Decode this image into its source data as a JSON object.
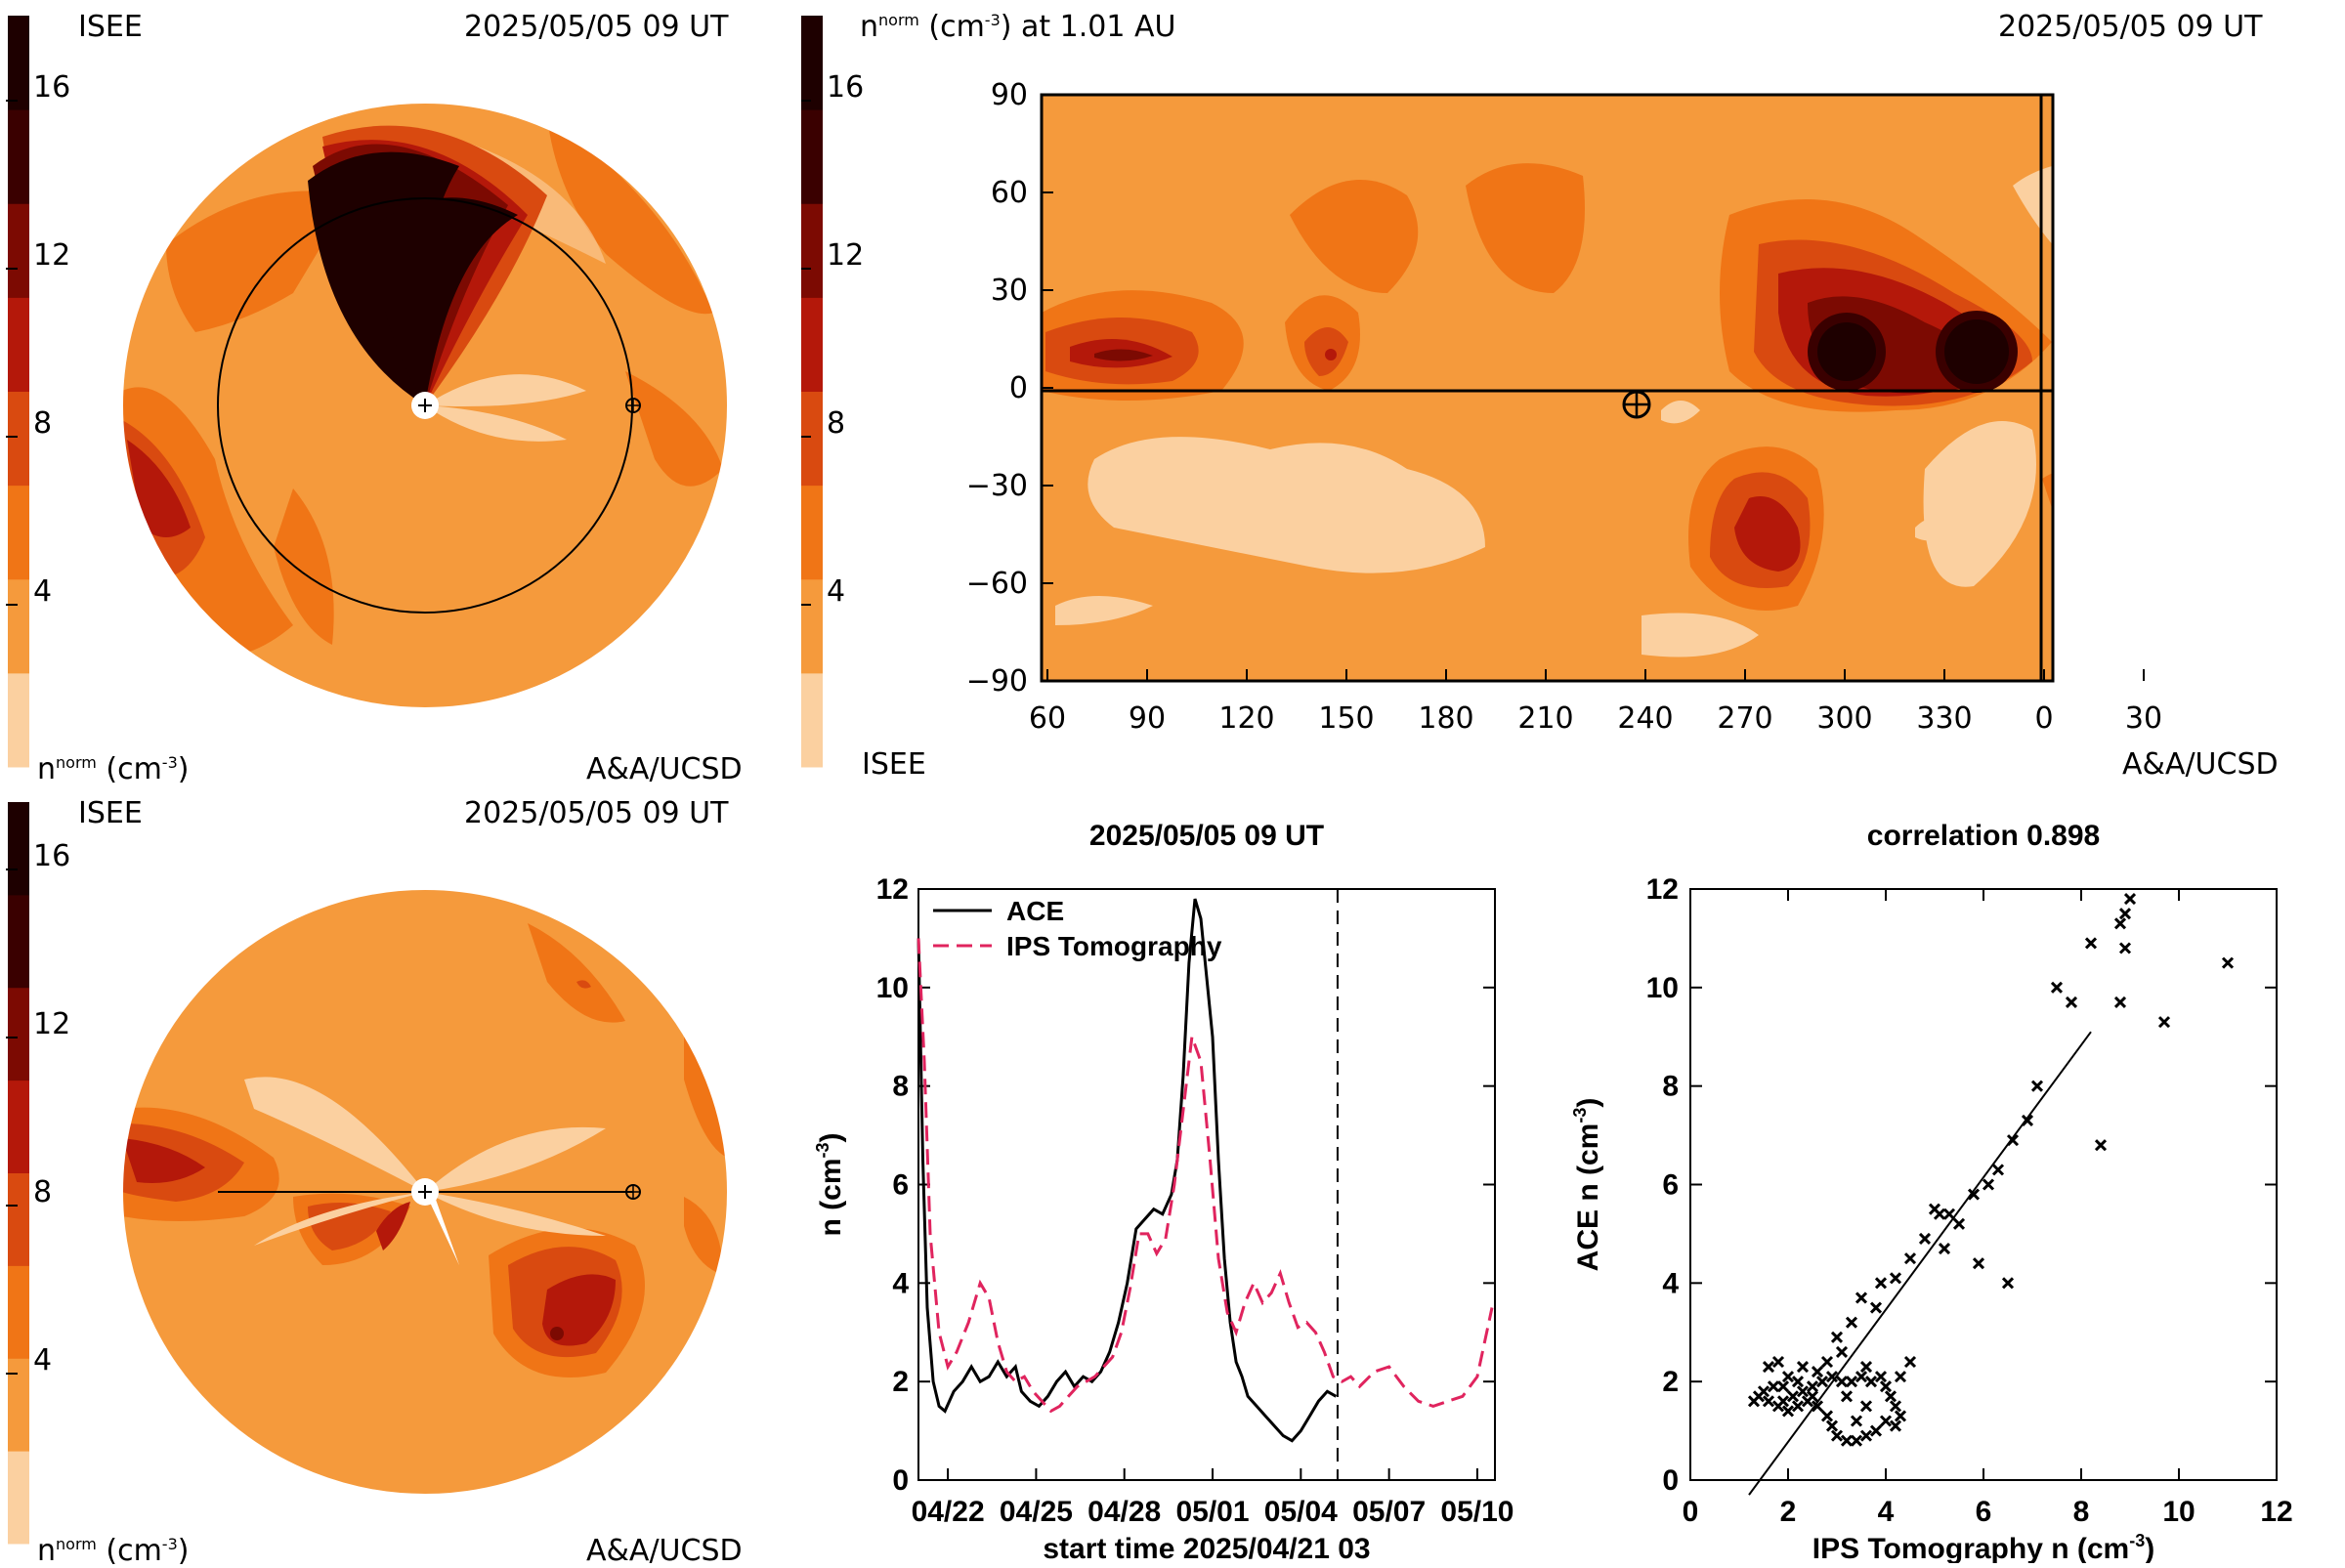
{
  "colors": {
    "bg": "#f59a3c",
    "level_colors": [
      "#fbd0a0",
      "#f59a3c",
      "#f07516",
      "#d94a10",
      "#b4180a",
      "#7c0a02",
      "#3a0000",
      "#1e0000"
    ],
    "ace_line": "#000000",
    "ips_line": "#e0245e"
  },
  "top_left": {
    "label_isee": "ISEE",
    "date": "2025/05/05 09 UT",
    "units": "n",
    "units_sup": "norm",
    "units_tail": "(cm",
    "units_exp": "-3",
    "units_close": ")",
    "credit": "A&A/UCSD"
  },
  "top_right": {
    "label": "n",
    "label_sup": "norm",
    "label_tail": "(cm",
    "label_exp": "-3",
    "label_close": ") at 1.01 AU",
    "date": "2025/05/05 09 UT",
    "label_isee": "ISEE",
    "credit": "A&A/UCSD"
  },
  "bottom_left": {
    "label_isee": "ISEE",
    "date": "2025/05/05 09 UT",
    "units": "n",
    "units_sup": "norm",
    "units_tail": "(cm",
    "units_exp": "-3",
    "units_close": ")",
    "credit": "A&A/UCSD"
  },
  "colorbar_ticks": [
    "16",
    "12",
    "8",
    "4"
  ],
  "map_axes": {
    "y_ticks": [
      "90",
      "60",
      "30",
      "0",
      "−30",
      "−60",
      "−90"
    ],
    "x_ticks": [
      "60",
      "90",
      "120",
      "150",
      "180",
      "210",
      "240",
      "270",
      "300",
      "330",
      "0",
      "30"
    ]
  },
  "chart_data": [
    {
      "type": "line",
      "title": "2025/05/05 09 UT",
      "xlabel": "start time 2025/04/21 03",
      "ylabel": "n (cm",
      "ylabel_exp": "-3",
      "ylabel_close": ")",
      "x_ticks": [
        "04/22",
        "04/25",
        "04/28",
        "05/01",
        "05/04",
        "05/07",
        "05/10"
      ],
      "x_tick_days": [
        1,
        4,
        7,
        10,
        13,
        16,
        19
      ],
      "xlim": [
        0,
        19.6
      ],
      "y_ticks": [
        "0",
        "2",
        "4",
        "6",
        "8",
        "10",
        "12"
      ],
      "ylim": [
        0,
        12
      ],
      "current_time_day": 14.25,
      "series": [
        {
          "name": "ACE",
          "style": "solid",
          "x": [
            0.0,
            0.15,
            0.3,
            0.5,
            0.7,
            0.9,
            1.2,
            1.5,
            1.8,
            2.1,
            2.4,
            2.7,
            3.0,
            3.3,
            3.5,
            3.8,
            4.1,
            4.4,
            4.7,
            5.0,
            5.3,
            5.6,
            5.9,
            6.2,
            6.5,
            6.8,
            7.1,
            7.4,
            7.7,
            8.0,
            8.3,
            8.6,
            8.8,
            9.0,
            9.2,
            9.4,
            9.6,
            9.8,
            10.0,
            10.2,
            10.4,
            10.6,
            10.8,
            11.0,
            11.2,
            11.5,
            11.8,
            12.1,
            12.4,
            12.7,
            13.0,
            13.3,
            13.6,
            13.9,
            14.2
          ],
          "values": [
            11.0,
            6.5,
            3.5,
            2.0,
            1.5,
            1.4,
            1.8,
            2.0,
            2.3,
            2.0,
            2.1,
            2.4,
            2.1,
            2.3,
            1.8,
            1.6,
            1.5,
            1.7,
            2.0,
            2.2,
            1.9,
            2.1,
            2.0,
            2.2,
            2.6,
            3.2,
            4.0,
            5.1,
            5.3,
            5.5,
            5.4,
            5.8,
            6.5,
            8.2,
            10.5,
            11.8,
            11.4,
            10.2,
            9.0,
            6.5,
            4.5,
            3.2,
            2.4,
            2.1,
            1.7,
            1.5,
            1.3,
            1.1,
            0.9,
            0.8,
            1.0,
            1.3,
            1.6,
            1.8,
            1.7
          ]
        },
        {
          "name": "IPS Tomography",
          "style": "dashed",
          "x": [
            0.0,
            0.2,
            0.4,
            0.7,
            1.0,
            1.3,
            1.7,
            2.1,
            2.4,
            2.7,
            3.0,
            3.3,
            3.6,
            3.9,
            4.2,
            4.5,
            4.8,
            5.1,
            5.4,
            5.7,
            6.0,
            6.3,
            6.6,
            6.9,
            7.2,
            7.5,
            7.8,
            8.1,
            8.4,
            8.7,
            9.0,
            9.3,
            9.6,
            9.9,
            10.2,
            10.5,
            10.8,
            11.1,
            11.4,
            11.7,
            12.0,
            12.3,
            12.6,
            12.9,
            13.2,
            13.5,
            13.8,
            14.1,
            14.4,
            14.7,
            15.0,
            15.5,
            16.0,
            16.5,
            17.0,
            17.5,
            18.0,
            18.5,
            19.0,
            19.5
          ],
          "values": [
            11.0,
            8.5,
            5.0,
            3.0,
            2.3,
            2.6,
            3.2,
            4.0,
            3.7,
            2.8,
            2.2,
            2.0,
            2.1,
            1.8,
            1.6,
            1.4,
            1.5,
            1.7,
            1.9,
            2.0,
            2.1,
            2.3,
            2.5,
            3.0,
            3.9,
            5.0,
            5.0,
            4.6,
            4.9,
            6.0,
            7.5,
            9.0,
            8.5,
            6.6,
            4.5,
            3.4,
            3.0,
            3.6,
            4.0,
            3.6,
            3.8,
            4.2,
            3.6,
            3.1,
            3.2,
            3.0,
            2.6,
            2.1,
            2.0,
            2.1,
            1.9,
            2.2,
            2.3,
            1.9,
            1.6,
            1.5,
            1.6,
            1.7,
            2.1,
            3.5
          ]
        }
      ]
    },
    {
      "type": "scatter",
      "title": "correlation 0.898",
      "xlabel": "IPS Tomography n (cm",
      "xlabel_exp": "-3",
      "xlabel_close": ")",
      "ylabel": "ACE n (cm",
      "ylabel_exp": "-3",
      "ylabel_close": ")",
      "x_ticks": [
        "0",
        "2",
        "4",
        "6",
        "8",
        "10",
        "12"
      ],
      "y_ticks": [
        "0",
        "2",
        "4",
        "6",
        "8",
        "10",
        "12"
      ],
      "xlim": [
        0,
        12
      ],
      "ylim": [
        0,
        12
      ],
      "fit_line": {
        "x": [
          1.2,
          8.2
        ],
        "y": [
          -0.3,
          9.1
        ]
      },
      "points": [
        [
          9.0,
          11.8
        ],
        [
          8.9,
          11.5
        ],
        [
          8.8,
          11.3
        ],
        [
          8.9,
          10.8
        ],
        [
          8.2,
          10.9
        ],
        [
          11.0,
          10.5
        ],
        [
          7.5,
          10.0
        ],
        [
          7.8,
          9.7
        ],
        [
          8.8,
          9.7
        ],
        [
          9.7,
          9.3
        ],
        [
          7.1,
          8.0
        ],
        [
          6.9,
          7.3
        ],
        [
          6.6,
          6.9
        ],
        [
          8.4,
          6.8
        ],
        [
          6.3,
          6.3
        ],
        [
          6.1,
          6.0
        ],
        [
          5.8,
          5.8
        ],
        [
          5.3,
          5.4
        ],
        [
          5.0,
          5.5
        ],
        [
          5.1,
          5.4
        ],
        [
          5.5,
          5.2
        ],
        [
          4.8,
          4.9
        ],
        [
          5.2,
          4.7
        ],
        [
          5.9,
          4.4
        ],
        [
          4.5,
          4.5
        ],
        [
          4.2,
          4.1
        ],
        [
          6.5,
          4.0
        ],
        [
          3.9,
          4.0
        ],
        [
          3.5,
          3.7
        ],
        [
          3.8,
          3.5
        ],
        [
          3.3,
          3.2
        ],
        [
          3.0,
          2.9
        ],
        [
          3.1,
          2.6
        ],
        [
          2.8,
          2.4
        ],
        [
          4.5,
          2.4
        ],
        [
          3.6,
          2.3
        ],
        [
          4.3,
          2.1
        ],
        [
          2.6,
          2.2
        ],
        [
          2.2,
          2.0
        ],
        [
          2.0,
          2.1
        ],
        [
          1.6,
          2.3
        ],
        [
          1.8,
          2.4
        ],
        [
          1.9,
          1.9
        ],
        [
          2.1,
          1.7
        ],
        [
          1.5,
          1.8
        ],
        [
          1.4,
          1.7
        ],
        [
          1.3,
          1.6
        ],
        [
          1.6,
          1.6
        ],
        [
          1.9,
          1.6
        ],
        [
          2.3,
          1.8
        ],
        [
          2.5,
          1.9
        ],
        [
          2.7,
          2.0
        ],
        [
          2.9,
          2.1
        ],
        [
          3.1,
          2.0
        ],
        [
          3.3,
          2.0
        ],
        [
          3.5,
          2.1
        ],
        [
          3.7,
          2.0
        ],
        [
          3.9,
          2.1
        ],
        [
          4.0,
          1.9
        ],
        [
          4.1,
          1.7
        ],
        [
          4.2,
          1.5
        ],
        [
          4.3,
          1.3
        ],
        [
          4.2,
          1.1
        ],
        [
          4.0,
          1.2
        ],
        [
          3.8,
          1.0
        ],
        [
          3.6,
          0.9
        ],
        [
          3.4,
          0.8
        ],
        [
          3.2,
          0.8
        ],
        [
          3.0,
          0.9
        ],
        [
          2.9,
          1.1
        ],
        [
          2.8,
          1.3
        ],
        [
          2.6,
          1.5
        ],
        [
          2.4,
          1.6
        ],
        [
          2.2,
          1.5
        ],
        [
          2.0,
          1.4
        ],
        [
          1.8,
          1.5
        ],
        [
          2.3,
          2.3
        ],
        [
          1.7,
          1.9
        ],
        [
          2.5,
          1.7
        ],
        [
          3.2,
          1.7
        ],
        [
          3.6,
          1.5
        ],
        [
          3.4,
          1.2
        ]
      ]
    }
  ]
}
